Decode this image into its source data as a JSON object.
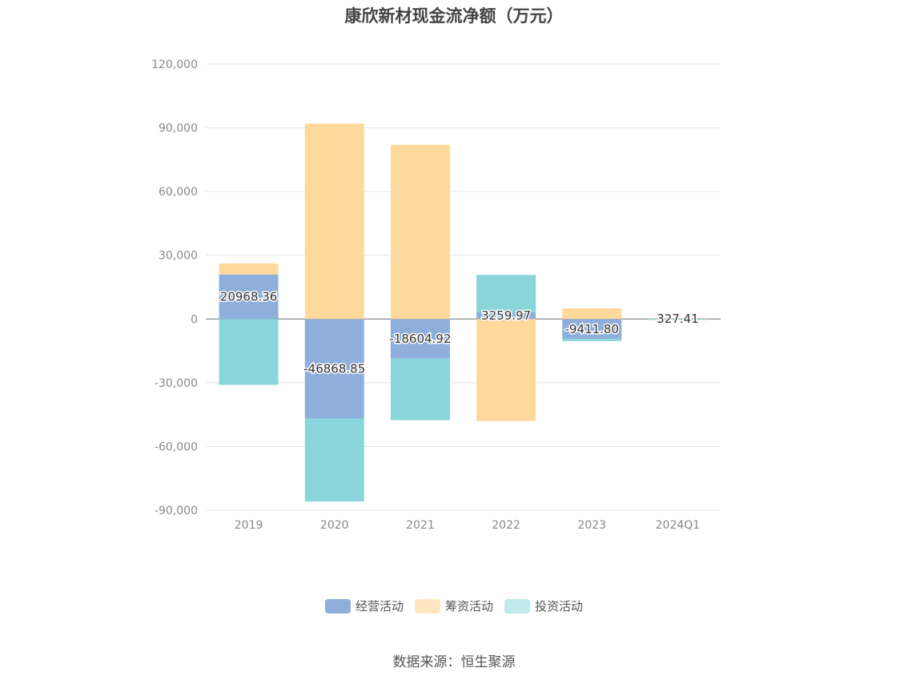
{
  "chart_data": {
    "type": "bar",
    "stacked": true,
    "title": "康欣新材现金流净额（万元）",
    "categories": [
      "2019",
      "2020",
      "2021",
      "2022",
      "2023",
      "2024Q1"
    ],
    "series": [
      {
        "name": "经营活动",
        "color": "#8eaedb",
        "values": [
          20968.36,
          -46868.85,
          -18604.92,
          3259.97,
          -9411.8,
          327.41
        ]
      },
      {
        "name": "筹资活动",
        "color": "#ffd89b",
        "values": [
          5200,
          92000,
          82000,
          -48000,
          5000,
          200
        ]
      },
      {
        "name": "投资活动",
        "color": "#88d6d9",
        "values": [
          -31000,
          -39000,
          -29000,
          17500,
          -1000,
          -400
        ]
      }
    ],
    "data_labels": [
      "20968.36",
      "-46868.85",
      "-18604.92",
      "3259.97",
      "-9411.80",
      "327.41"
    ],
    "y_ticks": [
      "120,000",
      "90,000",
      "60,000",
      "30,000",
      "0",
      "-30,000",
      "-60,000",
      "-90,000"
    ],
    "ylim": [
      -90000,
      120000
    ],
    "grid": true,
    "legend_position": "bottom"
  },
  "legend": {
    "items": [
      {
        "label": "经营活动",
        "color": "#8eaedb"
      },
      {
        "label": "筹资活动",
        "color": "#ffe6c0"
      },
      {
        "label": "投资活动",
        "color": "#bfe9ea"
      }
    ]
  },
  "source": "数据来源：恒生聚源"
}
